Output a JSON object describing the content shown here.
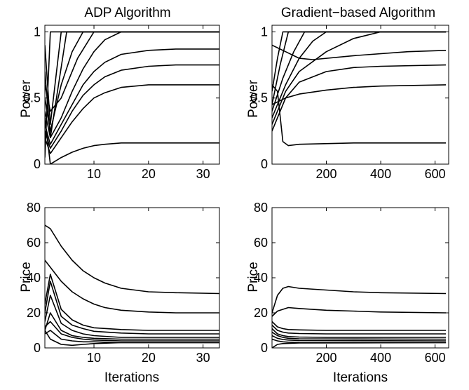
{
  "figure": {
    "panels": [
      {
        "id": "adp-power",
        "title": "ADP Algorithm",
        "ylabel": "Power",
        "xlabel": ""
      },
      {
        "id": "grad-power",
        "title": "Gradient−based Algorithm",
        "ylabel": "Power",
        "xlabel": ""
      },
      {
        "id": "adp-price",
        "title": "",
        "ylabel": "Price",
        "xlabel": "Iterations"
      },
      {
        "id": "grad-price",
        "title": "",
        "ylabel": "Price",
        "xlabel": "Iterations"
      }
    ]
  },
  "chart_data": [
    {
      "type": "line",
      "title": "ADP Algorithm",
      "xlabel": "",
      "ylabel": "Power",
      "xlim": [
        1,
        33
      ],
      "ylim": [
        0,
        1.05
      ],
      "xticks": [
        10,
        20,
        30
      ],
      "xtick_labels": [
        "10",
        "20",
        "30"
      ],
      "yticks": [
        0,
        0.5,
        1
      ],
      "ytick_labels": [
        "0",
        "0.5",
        "1"
      ],
      "series": [
        {
          "x": [
            1,
            2,
            33
          ],
          "y": [
            0.05,
            1,
            1
          ]
        },
        {
          "x": [
            1,
            2,
            4,
            33
          ],
          "y": [
            0.9,
            0.3,
            1,
            1
          ]
        },
        {
          "x": [
            1,
            2,
            5,
            33
          ],
          "y": [
            0.7,
            0.2,
            1,
            1
          ]
        },
        {
          "x": [
            1,
            2,
            4,
            6,
            8,
            33
          ],
          "y": [
            0.5,
            0.25,
            0.6,
            0.85,
            1,
            1
          ]
        },
        {
          "x": [
            1,
            2,
            4,
            7,
            10,
            33
          ],
          "y": [
            0.6,
            0.4,
            0.5,
            0.8,
            1,
            1
          ]
        },
        {
          "x": [
            1,
            2,
            4,
            6,
            8,
            10,
            12,
            15,
            33
          ],
          "y": [
            0.4,
            0.2,
            0.35,
            0.55,
            0.72,
            0.85,
            0.94,
            1,
            1
          ]
        },
        {
          "x": [
            1,
            2,
            4,
            6,
            8,
            10,
            12,
            15,
            20,
            25,
            33
          ],
          "y": [
            0.3,
            0.15,
            0.3,
            0.45,
            0.6,
            0.7,
            0.77,
            0.83,
            0.86,
            0.87,
            0.87
          ]
        },
        {
          "x": [
            1,
            2,
            4,
            6,
            8,
            10,
            12,
            15,
            20,
            25,
            33
          ],
          "y": [
            0.25,
            0.12,
            0.25,
            0.4,
            0.52,
            0.6,
            0.66,
            0.71,
            0.74,
            0.75,
            0.75
          ]
        },
        {
          "x": [
            1,
            2,
            4,
            6,
            8,
            10,
            12,
            15,
            20,
            25,
            33
          ],
          "y": [
            0.2,
            0.08,
            0.2,
            0.32,
            0.42,
            0.5,
            0.54,
            0.58,
            0.6,
            0.6,
            0.6
          ]
        },
        {
          "x": [
            1,
            2,
            4,
            6,
            8,
            10,
            12,
            15,
            20,
            33
          ],
          "y": [
            0.35,
            0.0,
            0.05,
            0.09,
            0.12,
            0.14,
            0.15,
            0.16,
            0.16,
            0.16
          ]
        }
      ]
    },
    {
      "type": "line",
      "title": "Gradient−based Algorithm",
      "xlabel": "",
      "ylabel": "Power",
      "xlim": [
        0,
        650
      ],
      "ylim": [
        0,
        1.05
      ],
      "xticks": [
        200,
        400,
        600
      ],
      "xtick_labels": [
        "200",
        "400",
        "600"
      ],
      "yticks": [
        0,
        0.5,
        1
      ],
      "ytick_labels": [
        "0",
        "0.5",
        "1"
      ],
      "series": [
        {
          "x": [
            0,
            20,
            40,
            640
          ],
          "y": [
            0.55,
            0.8,
            1,
            1
          ]
        },
        {
          "x": [
            0,
            30,
            60,
            640
          ],
          "y": [
            0.45,
            0.75,
            1,
            1
          ]
        },
        {
          "x": [
            0,
            40,
            80,
            120,
            640
          ],
          "y": [
            0.4,
            0.65,
            0.85,
            1,
            1
          ]
        },
        {
          "x": [
            0,
            50,
            100,
            150,
            200,
            640
          ],
          "y": [
            0.35,
            0.6,
            0.8,
            0.93,
            1,
            1
          ]
        },
        {
          "x": [
            0,
            50,
            100,
            200,
            300,
            400,
            640
          ],
          "y": [
            0.3,
            0.55,
            0.7,
            0.85,
            0.95,
            1,
            1
          ]
        },
        {
          "x": [
            0,
            50,
            100,
            150,
            300,
            500,
            640
          ],
          "y": [
            0.9,
            0.85,
            0.8,
            0.79,
            0.82,
            0.85,
            0.86
          ]
        },
        {
          "x": [
            0,
            50,
            100,
            200,
            300,
            400,
            640
          ],
          "y": [
            0.25,
            0.5,
            0.62,
            0.7,
            0.73,
            0.74,
            0.75
          ]
        },
        {
          "x": [
            0,
            50,
            100,
            200,
            300,
            400,
            640
          ],
          "y": [
            0.45,
            0.5,
            0.53,
            0.56,
            0.58,
            0.59,
            0.6
          ]
        },
        {
          "x": [
            0,
            20,
            40,
            60,
            100,
            300,
            640
          ],
          "y": [
            0.6,
            0.55,
            0.17,
            0.14,
            0.15,
            0.16,
            0.16
          ]
        }
      ]
    },
    {
      "type": "line",
      "title": "",
      "xlabel": "Iterations",
      "ylabel": "Price",
      "xlim": [
        1,
        33
      ],
      "ylim": [
        0,
        80
      ],
      "xticks": [
        10,
        20,
        30
      ],
      "xtick_labels": [
        "10",
        "20",
        "30"
      ],
      "yticks": [
        0,
        20,
        40,
        60,
        80
      ],
      "ytick_labels": [
        "0",
        "20",
        "40",
        "60",
        "80"
      ],
      "series": [
        {
          "x": [
            1,
            2,
            4,
            6,
            8,
            10,
            12,
            15,
            20,
            25,
            33
          ],
          "y": [
            70,
            68,
            58,
            50,
            44,
            40,
            37,
            34,
            32,
            31.5,
            31
          ]
        },
        {
          "x": [
            1,
            2,
            4,
            6,
            8,
            10,
            12,
            15,
            20,
            25,
            33
          ],
          "y": [
            50,
            46,
            38,
            32,
            28,
            25,
            23,
            21.5,
            20.5,
            20,
            20
          ]
        },
        {
          "x": [
            1,
            2,
            4,
            6,
            8,
            10,
            15,
            20,
            33
          ],
          "y": [
            25,
            42,
            22,
            16,
            13,
            11.5,
            10.5,
            10,
            10
          ]
        },
        {
          "x": [
            1,
            2,
            4,
            6,
            8,
            10,
            15,
            20,
            33
          ],
          "y": [
            20,
            38,
            18,
            13,
            11,
            9.5,
            8.5,
            8,
            8
          ]
        },
        {
          "x": [
            1,
            2,
            4,
            6,
            8,
            10,
            15,
            20,
            33
          ],
          "y": [
            15,
            30,
            14,
            10,
            8,
            7,
            6,
            6,
            6
          ]
        },
        {
          "x": [
            1,
            2,
            4,
            6,
            8,
            10,
            15,
            20,
            33
          ],
          "y": [
            10,
            20,
            10,
            7,
            6,
            5.5,
            5,
            5,
            5
          ]
        },
        {
          "x": [
            1,
            2,
            4,
            6,
            8,
            10,
            15,
            20,
            33
          ],
          "y": [
            12,
            15,
            8,
            6,
            5,
            4.5,
            4,
            4,
            4
          ]
        },
        {
          "x": [
            1,
            2,
            4,
            6,
            8,
            10,
            15,
            20,
            33
          ],
          "y": [
            8,
            10,
            5,
            4,
            3.5,
            3.5,
            3,
            3,
            3
          ]
        },
        {
          "x": [
            1,
            2,
            4,
            6,
            8,
            10,
            15,
            33
          ],
          "y": [
            10,
            5,
            2,
            1.5,
            2,
            2.5,
            3,
            3
          ]
        }
      ]
    },
    {
      "type": "line",
      "title": "",
      "xlabel": "Iterations",
      "ylabel": "Price",
      "xlim": [
        0,
        650
      ],
      "ylim": [
        0,
        80
      ],
      "xticks": [
        200,
        400,
        600
      ],
      "xtick_labels": [
        "200",
        "400",
        "600"
      ],
      "yticks": [
        0,
        20,
        40,
        60,
        80
      ],
      "ytick_labels": [
        "0",
        "20",
        "40",
        "60",
        "80"
      ],
      "series": [
        {
          "x": [
            0,
            20,
            40,
            60,
            100,
            200,
            300,
            400,
            640
          ],
          "y": [
            20,
            30,
            34,
            35,
            34,
            33,
            32,
            31.5,
            31
          ]
        },
        {
          "x": [
            0,
            20,
            40,
            60,
            100,
            200,
            300,
            400,
            640
          ],
          "y": [
            18,
            21,
            22,
            23,
            22.5,
            21.5,
            21,
            20.5,
            20
          ]
        },
        {
          "x": [
            0,
            20,
            40,
            60,
            100,
            200,
            640
          ],
          "y": [
            15,
            12,
            11,
            10.5,
            10.3,
            10,
            10
          ]
        },
        {
          "x": [
            0,
            20,
            40,
            60,
            100,
            200,
            640
          ],
          "y": [
            13,
            10,
            9,
            8.5,
            8.2,
            8,
            8
          ]
        },
        {
          "x": [
            0,
            20,
            40,
            60,
            100,
            200,
            640
          ],
          "y": [
            11,
            8,
            7,
            6.5,
            6.2,
            6,
            6
          ]
        },
        {
          "x": [
            0,
            20,
            40,
            60,
            100,
            640
          ],
          "y": [
            9,
            7,
            6,
            5.5,
            5.2,
            5
          ]
        },
        {
          "x": [
            0,
            20,
            40,
            60,
            100,
            640
          ],
          "y": [
            7,
            5.5,
            4.8,
            4.5,
            4.2,
            4
          ]
        },
        {
          "x": [
            0,
            20,
            40,
            60,
            100,
            640
          ],
          "y": [
            5,
            4,
            3.5,
            3.3,
            3.1,
            3
          ]
        },
        {
          "x": [
            0,
            20,
            40,
            100,
            640
          ],
          "y": [
            0,
            2,
            2.5,
            2.8,
            3
          ]
        }
      ]
    }
  ]
}
